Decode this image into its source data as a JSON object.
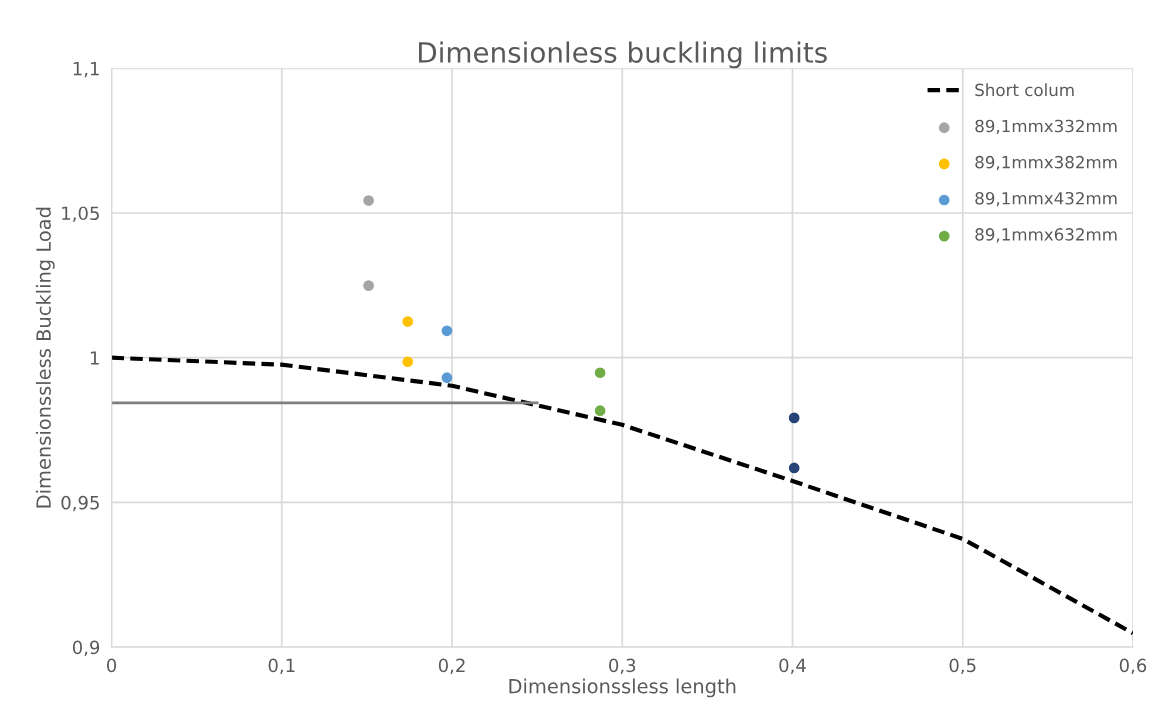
{
  "chart_data": {
    "type": "scatter",
    "title": "Dimensionless buckling limits",
    "xlabel": "Dimensionssless length",
    "ylabel": "Dimensionssless Buckling Load",
    "xlim": [
      0,
      0.6
    ],
    "ylim": [
      0.9,
      1.1
    ],
    "xticks": [
      0,
      {
        "value": 0.1,
        "label": "0,1"
      },
      {
        "value": 0.2,
        "label": "0,2"
      },
      {
        "value": 0.3,
        "label": "0,3"
      },
      {
        "value": 0.4,
        "label": "0,4"
      },
      {
        "value": 0.5,
        "label": "0,5"
      },
      {
        "value": 0.6,
        "label": "0,6"
      }
    ],
    "yticks": [
      {
        "value": 0.9,
        "label": "0,9"
      },
      {
        "value": 0.95,
        "label": "0,95"
      },
      1,
      {
        "value": 1.05,
        "label": "1,05"
      },
      {
        "value": 1.1,
        "label": "1,1"
      }
    ],
    "grid": true,
    "legend": "top right",
    "marker": "circle",
    "series": [
      {
        "type": "line",
        "name": "Short colum",
        "color": "#000000",
        "line_style": "dashed",
        "marker": "none",
        "x": [
          0,
          0.1,
          0.2,
          0.3,
          0.4,
          0.5,
          0.6
        ],
        "values": [
          1.0,
          0.9976,
          0.9903,
          0.9768,
          0.9574,
          0.9374,
          0.9048
        ]
      },
      {
        "name": "89,1mmx332mm",
        "color": "#a5a5a5",
        "x": [
          0.151,
          0.151
        ],
        "values": [
          1.0543,
          1.0249
        ]
      },
      {
        "name": "89,1mmx382mm",
        "color": "#ffc000",
        "x": [
          0.174,
          0.174
        ],
        "values": [
          1.0125,
          0.9986
        ]
      },
      {
        "name": "89,1mmx432mm",
        "color": "#5b9bd5",
        "x": [
          0.197,
          0.197
        ],
        "values": [
          1.0093,
          0.9931
        ]
      },
      {
        "name": "89,1mmx632mm",
        "color": "#70ad47",
        "x": [
          0.287,
          0.287
        ],
        "values": [
          0.9948,
          0.9817
        ]
      },
      {
        "color": "#264478",
        "x": [
          0.401,
          0.401
        ],
        "values": [
          0.9792,
          0.9619
        ]
      },
      {
        "type": "line",
        "color": "#7f7f7f",
        "line_style": "solid",
        "marker": "none",
        "x": [
          0,
          0.25
        ],
        "values": [
          0.9844,
          0.9844
        ]
      }
    ]
  }
}
